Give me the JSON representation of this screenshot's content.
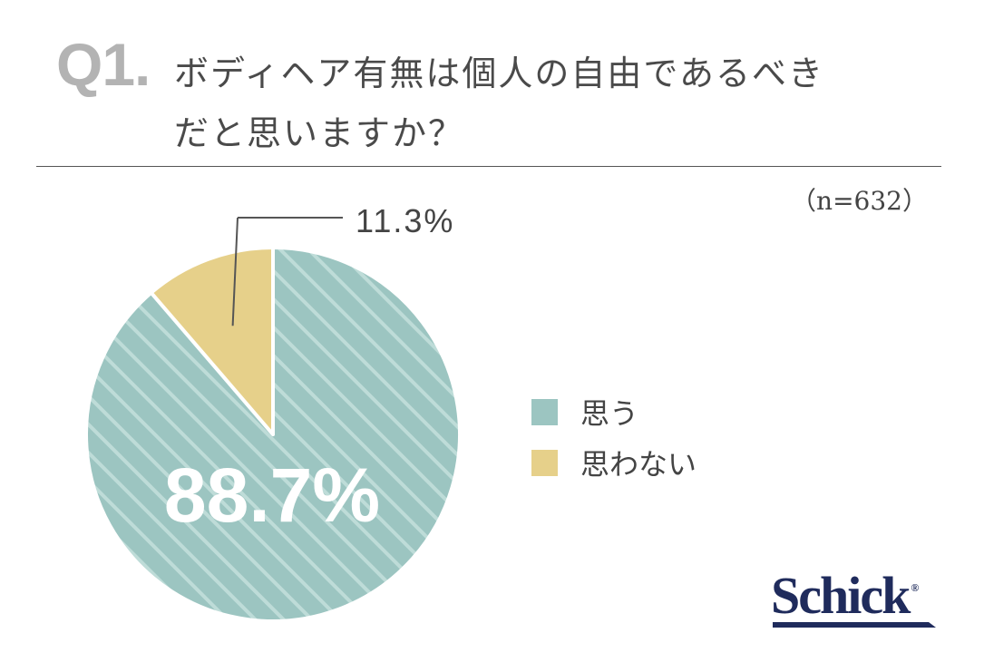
{
  "question": {
    "label": "Q1.",
    "line1": "ボディヘア有無は個人の自由であるべき",
    "line2": "だと思いますか？"
  },
  "sample_size": "（n=632）",
  "brand": {
    "name": "Schick",
    "mark": "®"
  },
  "colors": {
    "yes": "#9cc5c1",
    "no": "#e6d08a",
    "stripe": "#bedcd8",
    "separator": "#ffffff",
    "leader": "#555555",
    "brand": "#1f2b5c"
  },
  "chart_data": {
    "type": "pie",
    "start_angle_deg": 0,
    "direction": "clockwise",
    "slices": [
      {
        "label": "思う",
        "value": 88.7,
        "display": "88.7%",
        "color": "#9cc5c1",
        "pattern": "diagonal-stripes"
      },
      {
        "label": "思わない",
        "value": 11.3,
        "display": "11.3%",
        "color": "#e6d08a",
        "pattern": "solid"
      }
    ],
    "legend_position": "right"
  }
}
